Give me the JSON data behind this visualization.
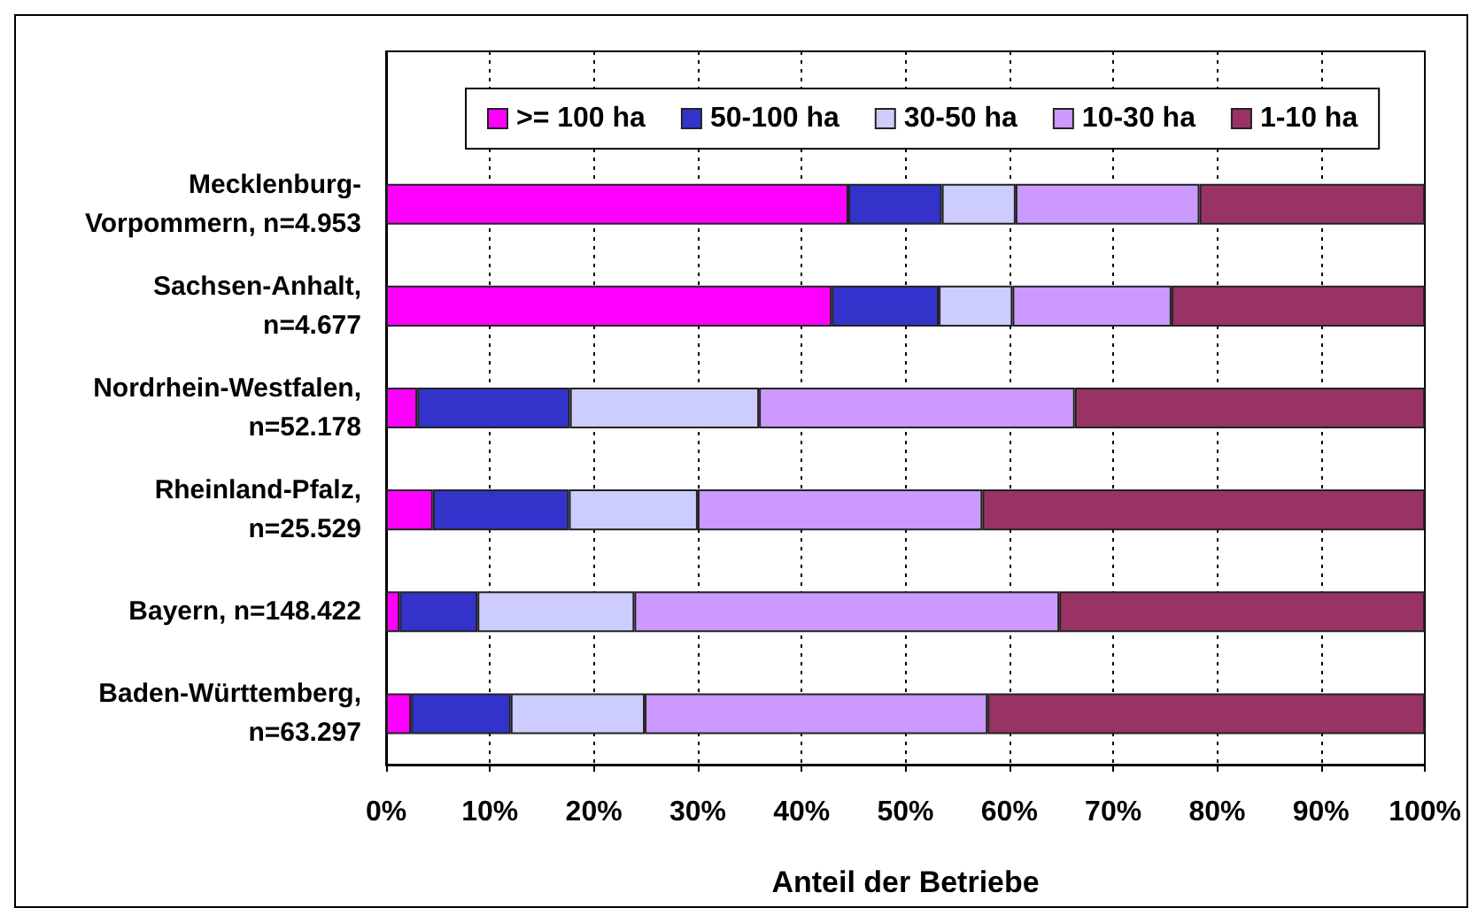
{
  "chart_data": {
    "type": "bar",
    "orientation": "horizontal",
    "stacked": true,
    "xlabel": "Anteil der Betriebe",
    "categories": [
      "Mecklenburg-\nVorpommern, n=4.953",
      "Sachsen-Anhalt,\nn=4.677",
      "Nordrhein-Westfalen,\nn=52.178",
      "Rheinland-Pfalz,\nn=25.529",
      "Bayern, n=148.422",
      "Baden-Württemberg,\nn=63.297"
    ],
    "series": [
      {
        "name": ">= 100 ha",
        "color": "#ff00ff",
        "values": [
          44.5,
          42.9,
          3.0,
          4.5,
          1.3,
          2.4
        ]
      },
      {
        "name": "50-100 ha",
        "color": "#3333cc",
        "values": [
          9.0,
          10.3,
          14.7,
          13.1,
          7.5,
          9.6
        ]
      },
      {
        "name": "30-50 ha",
        "color": "#ccccff",
        "values": [
          7.1,
          7.1,
          18.2,
          12.4,
          15.1,
          12.9
        ]
      },
      {
        "name": "10-30 ha",
        "color": "#cc99ff",
        "values": [
          17.7,
          15.3,
          30.4,
          27.4,
          40.9,
          33.0
        ]
      },
      {
        "name": "1-10 ha",
        "color": "#993366",
        "values": [
          21.7,
          24.4,
          33.7,
          42.6,
          35.2,
          42.1
        ]
      }
    ],
    "xlim": [
      0,
      100
    ],
    "xticks": [
      {
        "value": 0,
        "label": "0%"
      },
      {
        "value": 10,
        "label": "10%"
      },
      {
        "value": 20,
        "label": "20%"
      },
      {
        "value": 30,
        "label": "30%"
      },
      {
        "value": 40,
        "label": "40%"
      },
      {
        "value": 50,
        "label": "50%"
      },
      {
        "value": 60,
        "label": "60%"
      },
      {
        "value": 70,
        "label": "70%"
      },
      {
        "value": 80,
        "label": "80%"
      },
      {
        "value": 90,
        "label": "90%"
      },
      {
        "value": 100,
        "label": "100%"
      }
    ],
    "grid": "x",
    "legend": "top"
  }
}
